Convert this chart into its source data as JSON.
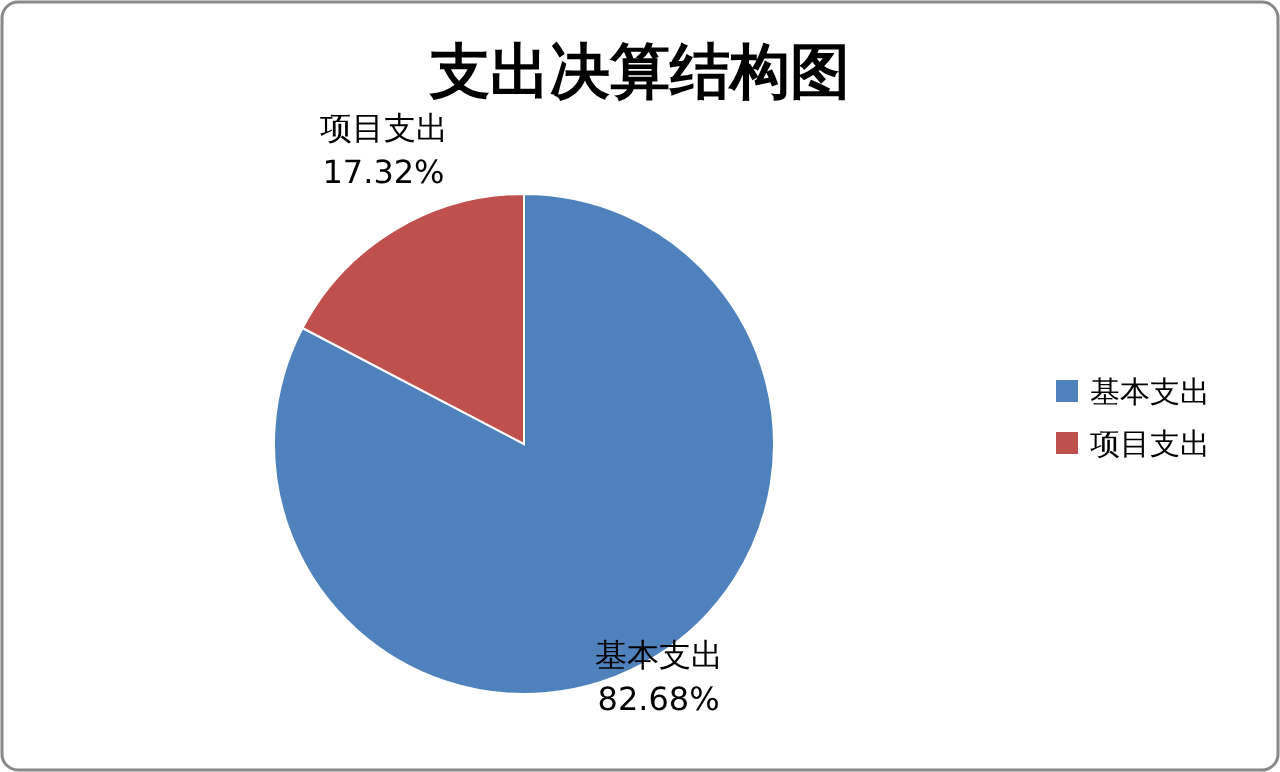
{
  "chart_data": {
    "type": "pie",
    "title": "支出决算结构图",
    "categories": [
      "基本支出",
      "项目支出"
    ],
    "values": [
      82.68,
      17.32
    ],
    "colors": [
      "#4f81bd",
      "#c0504d"
    ],
    "value_labels": [
      "82.68%",
      "17.32%"
    ],
    "legend": "right"
  }
}
